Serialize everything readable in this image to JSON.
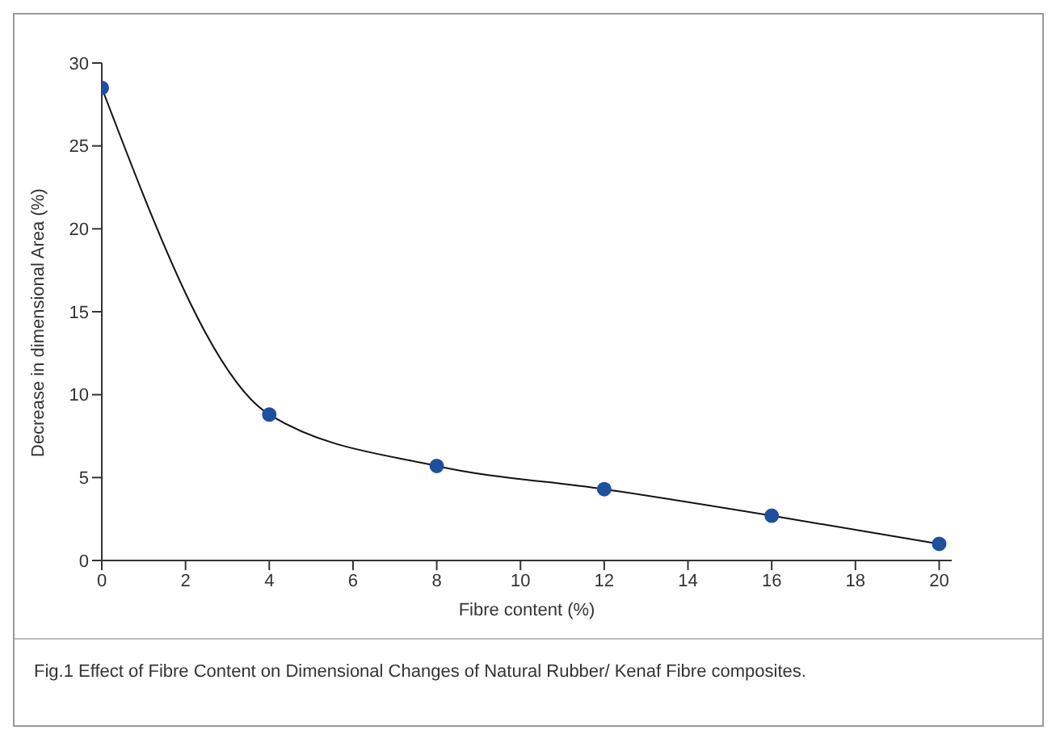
{
  "chart_data": {
    "type": "line",
    "xlabel": "Fibre content (%)",
    "ylabel": "Decrease in dimensional Area (%)",
    "x": [
      0,
      4,
      8,
      12,
      16,
      20
    ],
    "series": [
      {
        "color": "#1f4f9f",
        "values": [
          28.5,
          8.8,
          5.7,
          4.3,
          2.7,
          1.0
        ]
      }
    ],
    "xlim": [
      0,
      20.3
    ],
    "xticks": [
      0,
      2,
      4,
      6,
      8,
      10,
      12,
      14,
      16,
      18,
      20
    ],
    "ylim": [
      0,
      30
    ],
    "yticks": [
      0,
      5,
      10,
      15,
      20,
      25,
      30
    ],
    "grid": false,
    "legend": false,
    "marker": "circle",
    "line_style": "solid",
    "annotations": [
      "Fig.1 Effect of Fibre Content on Dimensional Changes of Natural Rubber/ Kenaf Fibre composites."
    ]
  }
}
